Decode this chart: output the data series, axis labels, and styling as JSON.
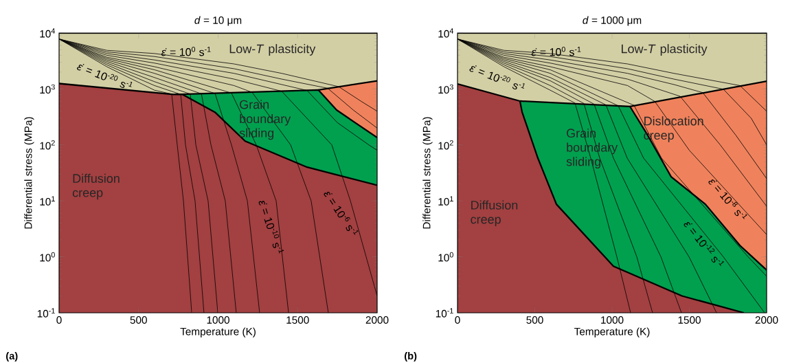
{
  "chart_data": [
    {
      "type": "area",
      "title": "*d* = 10 μm",
      "xlabel": "Temperature (K)",
      "ylabel": "Differential stress (MPa)",
      "log": "y",
      "marker": "none",
      "xlim": [
        0,
        2000
      ],
      "ylim": [
        0.1,
        10000
      ],
      "xticks": [
        0,
        500,
        1000,
        1500,
        2000
      ],
      "yticks": [
        {
          "value": 0.1,
          "label": "10$^{-1}$"
        },
        {
          "value": 1,
          "label": "10$^{0}$"
        },
        {
          "value": 10,
          "label": "10$^{1}$"
        },
        {
          "value": 100,
          "label": "10$^{2}$"
        },
        {
          "value": 1000,
          "label": "10$^{3}$"
        },
        {
          "value": 10000,
          "label": "10$^{4}$"
        }
      ],
      "annotations": [
        "*ε̇* = 10$^{0}$ s$^{-1}$",
        "*ε̇* = 10$^{-20}$ s$^{-1}$",
        "*ε̇* = 10$^{-10}$ s$^{-1}$",
        "*ε̇* = 10$^{-6}$ s$^{-1}$",
        "(a)"
      ],
      "series": [
        {
          "name": "Low-*T* plasticity",
          "color": "#d3cfa5",
          "x": [
            0,
            2000
          ],
          "values": [
            10000,
            10000
          ]
        },
        {
          "color": "#ef825c",
          "x": [
            1630,
            2000
          ],
          "values": [
            960,
            1400
          ]
        },
        {
          "name": "Grain boundary sliding",
          "color": "#00a04f",
          "x": [
            773,
            1630,
            1745,
            2000
          ],
          "values": [
            805,
            960,
            420,
            135
          ]
        },
        {
          "name": "Diffusion creep",
          "color": "#a34041",
          "x": [
            0,
            720,
            773,
            980,
            1170,
            1560,
            2000
          ],
          "values": [
            1250,
            800,
            805,
            385,
            117,
            40,
            19
          ]
        },
        {
          "type": "line",
          "color": "#000000",
          "x": [
            0,
            300,
            600,
            1100,
            1400,
            1758,
            1900,
            2000
          ],
          "values": [
            7800,
            4900,
            4300,
            2800,
            1900,
            1100,
            600,
            400
          ]
        },
        {
          "type": "line",
          "color": "#000000",
          "x": [
            0,
            300,
            600,
            1100,
            1400,
            1689,
            1850,
            2000
          ],
          "values": [
            7800,
            4600,
            3800,
            2300,
            1500,
            1030,
            420,
            200
          ]
        },
        {
          "type": "line",
          "color": "#000000",
          "x": [
            0,
            300,
            600,
            1100,
            1400,
            1559,
            1750,
            1948,
            2000
          ],
          "values": [
            7800,
            4300,
            3300,
            1900,
            1200,
            940,
            250,
            100,
            80
          ]
        },
        {
          "type": "line",
          "color": "#000000",
          "x": [
            0,
            300,
            600,
            1100,
            1400,
            1715,
            1832,
            2000
          ],
          "values": [
            7800,
            4000,
            2900,
            1500,
            910,
            100,
            10,
            0.2
          ]
        },
        {
          "type": "line",
          "color": "#000000",
          "x": [
            0,
            300,
            600,
            1100,
            1214,
            1456,
            1585,
            1693
          ],
          "values": [
            7800,
            3700,
            2500,
            1150,
            870,
            100,
            10,
            0.1
          ]
        },
        {
          "type": "line",
          "color": "#000000",
          "x": [
            0,
            300,
            600,
            1084,
            1240,
            1365,
            1443
          ],
          "values": [
            7800,
            3500,
            2200,
            845,
            100,
            10,
            0.1
          ]
        },
        {
          "type": "line",
          "color": "#000000",
          "x": [
            0,
            300,
            600,
            981,
            1084,
            1184,
            1261
          ],
          "values": [
            7800,
            3300,
            1900,
            830,
            100,
            10,
            0.1
          ]
        },
        {
          "type": "line",
          "color": "#000000",
          "x": [
            0,
            300,
            600,
            895,
            955,
            1045,
            1114
          ],
          "values": [
            7800,
            3100,
            1600,
            820,
            100,
            10,
            0.1
          ]
        },
        {
          "type": "line",
          "color": "#000000",
          "x": [
            0,
            300,
            600,
            825,
            860,
            937,
            998
          ],
          "values": [
            7800,
            2900,
            1350,
            810,
            100,
            10,
            0.1
          ]
        },
        {
          "type": "line",
          "color": "#000000",
          "x": [
            0,
            300,
            600,
            765,
            795,
            855,
            911
          ],
          "values": [
            7800,
            2700,
            1150,
            800,
            100,
            10,
            0.1
          ]
        },
        {
          "type": "line",
          "color": "#000000",
          "x": [
            0,
            300,
            600,
            708,
            743,
            782,
            834
          ],
          "values": [
            7800,
            2500,
            950,
            810,
            100,
            10,
            0.1
          ]
        }
      ]
    },
    {
      "type": "area",
      "title": "*d* = 1000 μm",
      "xlabel": "Temperature (K)",
      "ylabel": "Differential stress (MPa)",
      "log": "y",
      "marker": "none",
      "xlim": [
        0,
        2000
      ],
      "ylim": [
        0.1,
        10000
      ],
      "xticks": [
        0,
        500,
        1000,
        1500,
        2000
      ],
      "yticks": [
        {
          "value": 0.1,
          "label": "10$^{-1}$"
        },
        {
          "value": 1,
          "label": "10$^{0}$"
        },
        {
          "value": 10,
          "label": "10$^{1}$"
        },
        {
          "value": 100,
          "label": "10$^{2}$"
        },
        {
          "value": 1000,
          "label": "10$^{3}$"
        },
        {
          "value": 10000,
          "label": "10$^{4}$"
        }
      ],
      "annotations": [
        "*ε̇* = 10$^{0}$ s$^{-1}$",
        "*ε̇* = 10$^{-20}$ s$^{-1}$",
        "*ε̇* = 10$^{-8}$ s$^{-1}$",
        "*ε̇* = 10$^{-12}$ s$^{-1}$",
        "(b)"
      ],
      "series": [
        {
          "name": "Low-*T* plasticity",
          "color": "#d3cfa5",
          "x": [
            0,
            2000
          ],
          "values": [
            10000,
            10000
          ]
        },
        {
          "name": "Dislocation creep",
          "color": "#ef825c",
          "x": [
            1116,
            2000
          ],
          "values": [
            485,
            1380
          ]
        },
        {
          "name": "Grain boundary sliding",
          "color": "#00a04f",
          "x": [
            404,
            1116,
            1231,
            1382,
            1604,
            1827,
            2000
          ],
          "values": [
            608,
            485,
            148,
            27,
            8.7,
            1.6,
            0.58
          ]
        },
        {
          "name": "Diffusion creep",
          "color": "#a34041",
          "x": [
            0,
            404,
            418,
            520,
            640,
            1009,
            1453,
            1853
          ],
          "values": [
            1230,
            608,
            385,
            58,
            8.7,
            0.68,
            0.2,
            0.1
          ]
        },
        {
          "type": "line",
          "color": "#000000",
          "x": [
            0,
            300,
            600,
            1100,
            1400,
            1827,
            2000
          ],
          "values": [
            7800,
            4900,
            4300,
            2800,
            1900,
            1150,
            400
          ]
        },
        {
          "type": "line",
          "color": "#000000",
          "x": [
            0,
            300,
            600,
            1100,
            1400,
            1720,
            1900,
            2000
          ],
          "values": [
            7800,
            4600,
            3800,
            2300,
            1500,
            990,
            300,
            100
          ]
        },
        {
          "type": "line",
          "color": "#000000",
          "x": [
            0,
            300,
            600,
            1100,
            1400,
            1587,
            1800,
            2000
          ],
          "values": [
            7800,
            4300,
            3300,
            1900,
            1200,
            860,
            150,
            25
          ]
        },
        {
          "type": "line",
          "color": "#000000",
          "x": [
            0,
            300,
            600,
            1100,
            1440,
            1700,
            2000
          ],
          "values": [
            7800,
            4000,
            2900,
            1500,
            740,
            100,
            8
          ]
        },
        {
          "type": "line",
          "color": "#000000",
          "x": [
            0,
            300,
            600,
            1100,
            1276,
            1500,
            1800,
            2000
          ],
          "values": [
            7800,
            3700,
            2500,
            1150,
            600,
            80,
            10,
            2.5
          ]
        },
        {
          "type": "line",
          "color": "#000000",
          "x": [
            0,
            300,
            600,
            1142,
            1320,
            1880,
            2000
          ],
          "values": [
            7800,
            3500,
            2200,
            510,
            58,
            1,
            0.45
          ]
        },
        {
          "type": "line",
          "color": "#000000",
          "x": [
            0,
            300,
            600,
            1040,
            1204,
            1720,
            1987
          ],
          "values": [
            7800,
            3300,
            1900,
            500,
            58,
            1,
            0.1
          ]
        },
        {
          "type": "line",
          "color": "#000000",
          "x": [
            0,
            300,
            600,
            960,
            1098,
            1498,
            1676
          ],
          "values": [
            7800,
            3100,
            1600,
            520,
            58,
            1,
            0.1
          ]
        },
        {
          "type": "line",
          "color": "#000000",
          "x": [
            0,
            300,
            600,
            884,
            1009,
            1316,
            1449
          ],
          "values": [
            7800,
            2900,
            1400,
            535,
            58,
            1,
            0.1
          ]
        },
        {
          "type": "line",
          "color": "#000000",
          "x": [
            0,
            300,
            600,
            818,
            920,
            1160,
            1262
          ],
          "values": [
            7800,
            2700,
            1150,
            550,
            58,
            1,
            0.1
          ]
        },
        {
          "type": "line",
          "color": "#000000",
          "x": [
            0,
            300,
            600,
            760,
            862,
            1031,
            1120
          ],
          "values": [
            7800,
            2500,
            950,
            560,
            58,
            1,
            0.1
          ]
        }
      ]
    }
  ]
}
